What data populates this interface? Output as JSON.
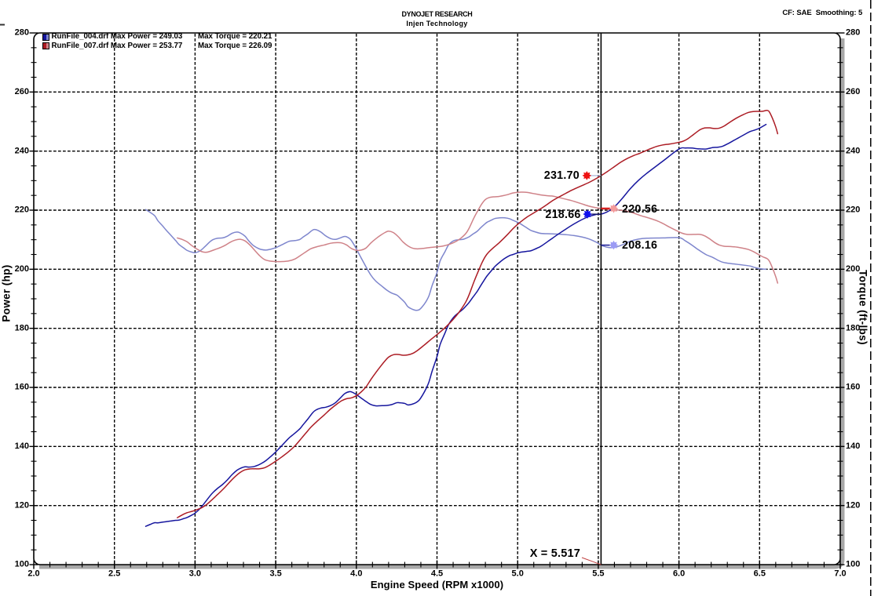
{
  "header": {
    "title": "DYNOJET RESEARCH",
    "subtitle": "Injen Technology",
    "correction_note": "CF: SAE  Smoothing: 5"
  },
  "legend": {
    "items": [
      {
        "label": "RunFile_004.drf Max Power = 249.03",
        "torque_label": "Max Torque = 220.21",
        "power_color": "#16169e",
        "torque_color": "#7e86cd"
      },
      {
        "label": "RunFile_007.drf Max Power = 253.77",
        "torque_label": "Max Torque = 226.09",
        "power_color": "#ac1c24",
        "torque_color": "#cf8288"
      }
    ]
  },
  "cursor": {
    "x_value": 5.517,
    "label": "X = 5.517",
    "readouts": [
      {
        "value_label": "231.70",
        "series": "RunFile_007 power",
        "dot_color": "#ee1111",
        "connector_color": "#aab4d8",
        "side": "left"
      },
      {
        "value_label": "218.66",
        "series": "RunFile_004 power",
        "dot_color": "#1111ee",
        "connector_color": "#11115e",
        "side": "left"
      },
      {
        "value_label": "220.56",
        "series": "RunFile_007 torque",
        "dot_color": "#f49b9b",
        "connector_color": "#d82020",
        "side": "right"
      },
      {
        "value_label": "208.16",
        "series": "RunFile_004 torque",
        "dot_color": "#9b9bf4",
        "connector_color": "#202098",
        "side": "right"
      }
    ]
  },
  "chart_data": {
    "type": "line",
    "title": "DYNOJET RESEARCH - Injen Technology",
    "xlabel": "Engine Speed (RPM x1000)",
    "ylabel_left": "Power (hp)",
    "ylabel_right": "Torque (ft-lbs)",
    "x_range": [
      2.0,
      7.0
    ],
    "x_major_step": 0.5,
    "x_minor_step": 0.1,
    "x_tick_labels": [
      "2.0",
      "2.5",
      "3.0",
      "3.5",
      "4.0",
      "4.5",
      "5.0",
      "5.5",
      "6.0",
      "6.5",
      "7.0"
    ],
    "y_range": [
      100,
      280
    ],
    "y_major_step": 20,
    "y_minor_step": 5,
    "y_tick_labels": [
      "100",
      "120",
      "140",
      "160",
      "180",
      "200",
      "220",
      "240",
      "260",
      "280"
    ],
    "grid": "dashed major only",
    "legend_position": "top-left inside plot",
    "power_from_torque_rule": "power_hp = torque_ftlbs * rpm / 5252",
    "cursor_x": 5.517,
    "series": [
      {
        "name": "RunFile_004.drf Torque",
        "axis": "right",
        "color": "#7e86cd",
        "max": 220.21,
        "points": [
          [
            2.694,
            220.2
          ],
          [
            2.72,
            219.3
          ],
          [
            2.75,
            218.1
          ],
          [
            2.77,
            216.4
          ],
          [
            2.8,
            214.6
          ],
          [
            2.82,
            213.3
          ],
          [
            2.85,
            211.5
          ],
          [
            2.88,
            209.7
          ],
          [
            2.9,
            208.4
          ],
          [
            2.93,
            207.2
          ],
          [
            2.95,
            206.4
          ],
          [
            2.98,
            205.8
          ],
          [
            3.0,
            205.6
          ],
          [
            3.03,
            206.2
          ],
          [
            3.06,
            207.6
          ],
          [
            3.09,
            209.2
          ],
          [
            3.11,
            210.0
          ],
          [
            3.14,
            210.5
          ],
          [
            3.17,
            210.6
          ],
          [
            3.2,
            211.2
          ],
          [
            3.23,
            212.2
          ],
          [
            3.26,
            212.6
          ],
          [
            3.28,
            212.3
          ],
          [
            3.31,
            211.2
          ],
          [
            3.33,
            209.8
          ],
          [
            3.36,
            208.1
          ],
          [
            3.39,
            207.1
          ],
          [
            3.41,
            206.7
          ],
          [
            3.44,
            206.5
          ],
          [
            3.47,
            206.8
          ],
          [
            3.5,
            207.3
          ],
          [
            3.52,
            207.8
          ],
          [
            3.55,
            208.6
          ],
          [
            3.58,
            209.4
          ],
          [
            3.6,
            209.6
          ],
          [
            3.62,
            209.7
          ],
          [
            3.65,
            210.1
          ],
          [
            3.67,
            210.9
          ],
          [
            3.7,
            212.0
          ],
          [
            3.73,
            213.3
          ],
          [
            3.75,
            213.4
          ],
          [
            3.78,
            212.6
          ],
          [
            3.81,
            211.3
          ],
          [
            3.84,
            210.4
          ],
          [
            3.87,
            210.1
          ],
          [
            3.9,
            210.6
          ],
          [
            3.93,
            211.1
          ],
          [
            3.96,
            210.3
          ],
          [
            3.98,
            208.8
          ],
          [
            4.0,
            206.9
          ],
          [
            4.03,
            203.8
          ],
          [
            4.06,
            200.8
          ],
          [
            4.09,
            198.0
          ],
          [
            4.12,
            196.0
          ],
          [
            4.16,
            194.2
          ],
          [
            4.19,
            192.9
          ],
          [
            4.22,
            191.9
          ],
          [
            4.25,
            191.3
          ],
          [
            4.27,
            190.4
          ],
          [
            4.3,
            188.8
          ],
          [
            4.32,
            187.3
          ],
          [
            4.35,
            186.4
          ],
          [
            4.37,
            186.1
          ],
          [
            4.39,
            186.3
          ],
          [
            4.41,
            187.4
          ],
          [
            4.43,
            188.9
          ],
          [
            4.45,
            191.0
          ],
          [
            4.47,
            194.5
          ],
          [
            4.5,
            198.9
          ],
          [
            4.52,
            202.9
          ],
          [
            4.55,
            206.0
          ],
          [
            4.57,
            208.1
          ],
          [
            4.59,
            209.2
          ],
          [
            4.61,
            209.8
          ],
          [
            4.64,
            210.0
          ],
          [
            4.66,
            210.1
          ],
          [
            4.68,
            210.5
          ],
          [
            4.7,
            211.0
          ],
          [
            4.72,
            211.8
          ],
          [
            4.75,
            212.9
          ],
          [
            4.77,
            214.0
          ],
          [
            4.79,
            215.0
          ],
          [
            4.81,
            215.9
          ],
          [
            4.84,
            216.7
          ],
          [
            4.86,
            217.2
          ],
          [
            4.89,
            217.4
          ],
          [
            4.92,
            217.4
          ],
          [
            4.95,
            217.1
          ],
          [
            4.97,
            216.6
          ],
          [
            5.0,
            215.9
          ],
          [
            5.02,
            215.3
          ],
          [
            5.04,
            214.6
          ],
          [
            5.06,
            213.9
          ],
          [
            5.08,
            213.2
          ],
          [
            5.1,
            212.8
          ],
          [
            5.13,
            212.3
          ],
          [
            5.15,
            212.1
          ],
          [
            5.2,
            212.0
          ],
          [
            5.25,
            211.9
          ],
          [
            5.3,
            211.7
          ],
          [
            5.35,
            211.4
          ],
          [
            5.4,
            210.9
          ],
          [
            5.44,
            210.3
          ],
          [
            5.47,
            209.6
          ],
          [
            5.49,
            209.1
          ],
          [
            5.517,
            208.16
          ],
          [
            5.55,
            207.5
          ],
          [
            5.58,
            207.3
          ],
          [
            5.61,
            207.5
          ],
          [
            5.65,
            208.3
          ],
          [
            5.7,
            209.5
          ],
          [
            5.75,
            210.2
          ],
          [
            5.8,
            210.5
          ],
          [
            5.9,
            210.6
          ],
          [
            6.0,
            210.7
          ],
          [
            6.04,
            209.6
          ],
          [
            6.08,
            208.2
          ],
          [
            6.11,
            207.0
          ],
          [
            6.14,
            205.9
          ],
          [
            6.17,
            204.9
          ],
          [
            6.21,
            204.0
          ],
          [
            6.24,
            203.1
          ],
          [
            6.27,
            202.4
          ],
          [
            6.31,
            202.0
          ],
          [
            6.34,
            201.8
          ],
          [
            6.37,
            201.6
          ],
          [
            6.4,
            201.4
          ],
          [
            6.44,
            201.1
          ],
          [
            6.47,
            200.6
          ],
          [
            6.5,
            200.2
          ],
          [
            6.54,
            199.99
          ]
        ]
      },
      {
        "name": "RunFile_007.drf Torque",
        "axis": "right",
        "color": "#cf8288",
        "max": 226.09,
        "points": [
          [
            2.89,
            210.6
          ],
          [
            2.92,
            210.1
          ],
          [
            2.95,
            209.3
          ],
          [
            2.98,
            208.0
          ],
          [
            3.01,
            206.9
          ],
          [
            3.04,
            206.0
          ],
          [
            3.07,
            205.75
          ],
          [
            3.1,
            206.2
          ],
          [
            3.13,
            206.8
          ],
          [
            3.16,
            207.4
          ],
          [
            3.19,
            208.2
          ],
          [
            3.22,
            209.2
          ],
          [
            3.25,
            209.9
          ],
          [
            3.28,
            210.15
          ],
          [
            3.31,
            209.6
          ],
          [
            3.34,
            208.2
          ],
          [
            3.37,
            206.4
          ],
          [
            3.4,
            204.6
          ],
          [
            3.43,
            203.3
          ],
          [
            3.46,
            202.8
          ],
          [
            3.5,
            202.6
          ],
          [
            3.54,
            202.6
          ],
          [
            3.58,
            202.8
          ],
          [
            3.62,
            203.5
          ],
          [
            3.66,
            204.9
          ],
          [
            3.69,
            206.0
          ],
          [
            3.72,
            207.0
          ],
          [
            3.76,
            207.7
          ],
          [
            3.8,
            208.2
          ],
          [
            3.84,
            208.8
          ],
          [
            3.88,
            209.0
          ],
          [
            3.91,
            208.9
          ],
          [
            3.94,
            208.2
          ],
          [
            3.97,
            207.0
          ],
          [
            4.0,
            206.4
          ],
          [
            4.03,
            206.5
          ],
          [
            4.06,
            207.2
          ],
          [
            4.09,
            208.9
          ],
          [
            4.12,
            210.3
          ],
          [
            4.15,
            211.5
          ],
          [
            4.18,
            212.5
          ],
          [
            4.2,
            212.9
          ],
          [
            4.23,
            212.4
          ],
          [
            4.26,
            211.0
          ],
          [
            4.29,
            209.2
          ],
          [
            4.32,
            207.9
          ],
          [
            4.35,
            207.1
          ],
          [
            4.38,
            206.9
          ],
          [
            4.42,
            207.1
          ],
          [
            4.46,
            207.4
          ],
          [
            4.5,
            207.6
          ],
          [
            4.54,
            207.9
          ],
          [
            4.58,
            208.5
          ],
          [
            4.62,
            209.5
          ],
          [
            4.65,
            210.6
          ],
          [
            4.68,
            212.2
          ],
          [
            4.7,
            214.0
          ],
          [
            4.73,
            217.5
          ],
          [
            4.76,
            220.5
          ],
          [
            4.78,
            222.3
          ],
          [
            4.8,
            223.6
          ],
          [
            4.82,
            224.2
          ],
          [
            4.85,
            224.5
          ],
          [
            4.88,
            224.6
          ],
          [
            4.91,
            224.9
          ],
          [
            4.94,
            225.3
          ],
          [
            4.97,
            225.8
          ],
          [
            5.0,
            226.05
          ],
          [
            5.03,
            226.09
          ],
          [
            5.06,
            226.0
          ],
          [
            5.09,
            225.7
          ],
          [
            5.12,
            225.4
          ],
          [
            5.15,
            225.1
          ],
          [
            5.18,
            224.9
          ],
          [
            5.21,
            224.8
          ],
          [
            5.24,
            224.5
          ],
          [
            5.27,
            224.1
          ],
          [
            5.3,
            223.7
          ],
          [
            5.33,
            223.3
          ],
          [
            5.36,
            222.8
          ],
          [
            5.4,
            222.1
          ],
          [
            5.44,
            221.4
          ],
          [
            5.48,
            220.9
          ],
          [
            5.517,
            220.56
          ],
          [
            5.56,
            220.3
          ],
          [
            5.6,
            220.15
          ],
          [
            5.64,
            220.0
          ],
          [
            5.68,
            219.6
          ],
          [
            5.72,
            219.0
          ],
          [
            5.76,
            218.2
          ],
          [
            5.81,
            217.4
          ],
          [
            5.86,
            216.5
          ],
          [
            5.9,
            215.5
          ],
          [
            5.94,
            214.3
          ],
          [
            5.98,
            213.2
          ],
          [
            6.02,
            212.2
          ],
          [
            6.05,
            211.8
          ],
          [
            6.09,
            211.8
          ],
          [
            6.13,
            211.8
          ],
          [
            6.16,
            211.3
          ],
          [
            6.19,
            210.3
          ],
          [
            6.22,
            209.1
          ],
          [
            6.25,
            208.2
          ],
          [
            6.28,
            207.8
          ],
          [
            6.32,
            207.7
          ],
          [
            6.36,
            207.5
          ],
          [
            6.4,
            207.1
          ],
          [
            6.43,
            206.7
          ],
          [
            6.46,
            206.0
          ],
          [
            6.49,
            205.1
          ],
          [
            6.52,
            204.2
          ],
          [
            6.545,
            203.64
          ],
          [
            6.56,
            202.8
          ],
          [
            6.58,
            200.4
          ],
          [
            6.6,
            197.5
          ],
          [
            6.612,
            195.3
          ]
        ]
      },
      {
        "name": "RunFile_004.drf Power",
        "axis": "left",
        "color": "#16169e",
        "max": 249.03,
        "derived_from": "RunFile_004.drf Torque"
      },
      {
        "name": "RunFile_007.drf Power",
        "axis": "left",
        "color": "#ac1c24",
        "max": 253.77,
        "derived_from": "RunFile_007.drf Torque"
      }
    ]
  },
  "layout_colors": {
    "frame": "#000000",
    "frame_shadow": "#a8a8a8",
    "grid": "#000000",
    "cursor_line": "#000000",
    "page_edge_dash": "#000000",
    "background": "#ffffff"
  }
}
